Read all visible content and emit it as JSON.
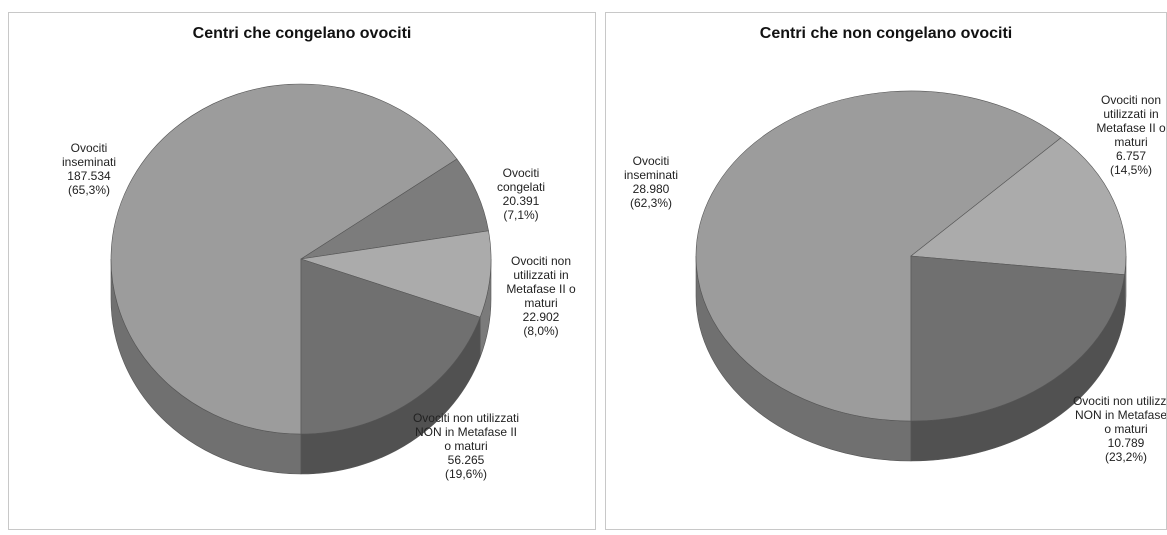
{
  "chart_data": [
    {
      "type": "pie3d",
      "title": "Centri che congelano ovociti",
      "categories": [
        "Ovociti inseminati",
        "Ovociti congelati",
        "Ovociti non utilizzati in Metafase II o maturi",
        "Ovociti non utilizzati NON in Metafase II o maturi"
      ],
      "values": [
        187534,
        20391,
        22902,
        56265
      ],
      "value_labels": [
        "187.534",
        "20.391",
        "22.902",
        "56.265"
      ],
      "percents": [
        65.3,
        7.1,
        8.0,
        19.6
      ],
      "percent_labels": [
        "(65,3%)",
        "(7,1%)",
        "(8,0%)",
        "(19,6%)"
      ],
      "colors": [
        "#9c9c9c",
        "#7c7c7c",
        "#ababab",
        "#707070"
      ]
    },
    {
      "type": "pie3d",
      "title": "Centri che non congelano ovociti",
      "categories": [
        "Ovociti inseminati",
        "Ovociti non utilizzati in Metafase II o maturi",
        "Ovociti non utilizzati NON in Metafase II o maturi"
      ],
      "values": [
        28980,
        6757,
        10789
      ],
      "value_labels": [
        "28.980",
        "6.757",
        "10.789"
      ],
      "percents": [
        62.3,
        14.5,
        23.2
      ],
      "percent_labels": [
        "(62,3%)",
        "(14,5%)",
        "(23,2%)"
      ],
      "colors": [
        "#9c9c9c",
        "#ababab",
        "#707070"
      ]
    }
  ]
}
